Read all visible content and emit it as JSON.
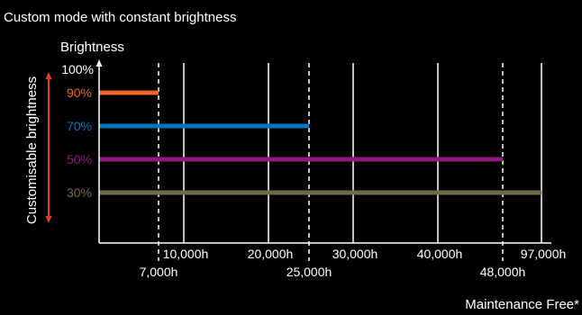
{
  "chart_data": {
    "type": "bar",
    "orientation": "horizontal",
    "title": "Custom mode with constant brightness",
    "ylabel": "Brightness",
    "side_label": "Customisable brightness",
    "footnote": "Maintenance Free*",
    "y_top_label": "100%",
    "series": [
      {
        "label": "90%",
        "hours": 7000,
        "color": "#f26522"
      },
      {
        "label": "70%",
        "hours": 25000,
        "color": "#0077c0"
      },
      {
        "label": "50%",
        "hours": 48000,
        "color": "#8e1a7e"
      },
      {
        "label": "30%",
        "hours": 97000,
        "color": "#6f6d47"
      }
    ],
    "ticks_upper": [
      {
        "label": "10,000h",
        "hours": 10000
      },
      {
        "label": "20,000h",
        "hours": 20000
      },
      {
        "label": "30,000h",
        "hours": 30000
      },
      {
        "label": "40,000h",
        "hours": 40000
      },
      {
        "label": "97,000h",
        "hours": 97000
      }
    ],
    "ticks_lower": [
      {
        "label": "7,000h",
        "hours": 7000
      },
      {
        "label": "25,000h",
        "hours": 25000
      },
      {
        "label": "48,000h",
        "hours": 48000
      }
    ],
    "colors": {
      "background": "#000000",
      "axis": "#ffffff",
      "grid": "#ffffff",
      "arrow": "#e23b2a"
    }
  }
}
